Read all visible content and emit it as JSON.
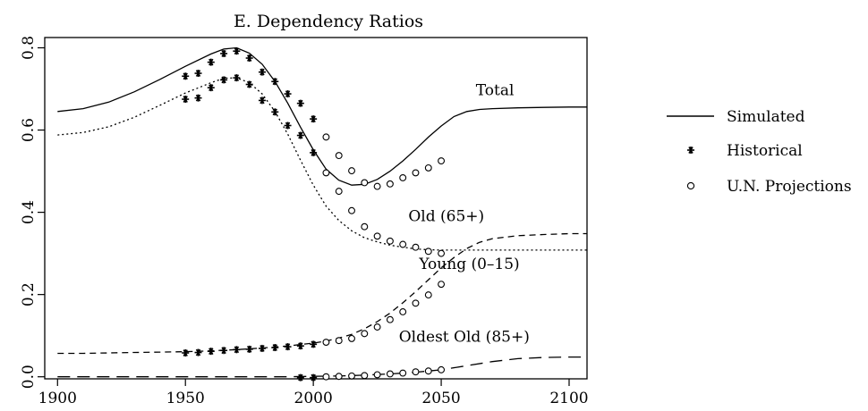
{
  "chart_data": {
    "type": "line",
    "title": "E. Dependency Ratios",
    "xlabel": "",
    "ylabel": "",
    "xlim": [
      1895,
      2107
    ],
    "ylim": [
      -0.005,
      0.825
    ],
    "x_ticks": [
      1900,
      1950,
      2000,
      2050,
      2100
    ],
    "y_ticks": [
      0.0,
      0.2,
      0.4,
      0.6,
      0.8
    ],
    "x_tick_labels": [
      "1900",
      "1950",
      "2000",
      "2050",
      "2100"
    ],
    "y_tick_labels": [
      "0.0",
      "0.2",
      "0.4",
      "0.6",
      "0.8"
    ],
    "grid": false,
    "legend": {
      "position": "right",
      "entries": [
        {
          "label": "Simulated",
          "symbol": "line"
        },
        {
          "label": "Historical",
          "symbol": "asterisk"
        },
        {
          "label": "U.N. Projections",
          "symbol": "circle"
        }
      ]
    },
    "series": [
      {
        "label": "Total",
        "line_style": "solid",
        "x": [
          1900,
          1910,
          1920,
          1930,
          1940,
          1950,
          1960,
          1965,
          1970,
          1975,
          1980,
          1985,
          1990,
          1995,
          2000,
          2005,
          2010,
          2015,
          2020,
          2025,
          2030,
          2035,
          2040,
          2045,
          2050,
          2055,
          2060,
          2065,
          2070,
          2080,
          2090,
          2100,
          2107
        ],
        "y": [
          0.645,
          0.652,
          0.668,
          0.693,
          0.723,
          0.755,
          0.785,
          0.797,
          0.8,
          0.787,
          0.76,
          0.718,
          0.665,
          0.607,
          0.552,
          0.505,
          0.478,
          0.466,
          0.468,
          0.48,
          0.5,
          0.525,
          0.553,
          0.583,
          0.61,
          0.633,
          0.645,
          0.65,
          0.652,
          0.654,
          0.655,
          0.656,
          0.656
        ]
      },
      {
        "label": "Young (0-15)",
        "line_style": "dotted",
        "x": [
          1900,
          1910,
          1920,
          1930,
          1940,
          1950,
          1960,
          1965,
          1970,
          1975,
          1980,
          1985,
          1990,
          1995,
          2000,
          2005,
          2010,
          2015,
          2020,
          2025,
          2030,
          2035,
          2040,
          2045,
          2050,
          2060,
          2070,
          2080,
          2090,
          2100,
          2107
        ],
        "y": [
          0.588,
          0.594,
          0.608,
          0.631,
          0.66,
          0.69,
          0.715,
          0.726,
          0.727,
          0.715,
          0.688,
          0.645,
          0.59,
          0.527,
          0.466,
          0.415,
          0.38,
          0.355,
          0.338,
          0.328,
          0.32,
          0.315,
          0.311,
          0.309,
          0.308,
          0.308,
          0.308,
          0.308,
          0.308,
          0.308,
          0.308
        ]
      },
      {
        "label": "Old (65+)",
        "line_style": "dashed",
        "x": [
          1900,
          1910,
          1920,
          1930,
          1940,
          1950,
          1960,
          1970,
          1980,
          1990,
          2000,
          2005,
          2010,
          2015,
          2020,
          2025,
          2030,
          2035,
          2040,
          2045,
          2050,
          2055,
          2060,
          2065,
          2070,
          2080,
          2090,
          2100,
          2107
        ],
        "y": [
          0.057,
          0.057,
          0.058,
          0.059,
          0.06,
          0.061,
          0.063,
          0.066,
          0.07,
          0.075,
          0.082,
          0.087,
          0.094,
          0.103,
          0.117,
          0.134,
          0.155,
          0.18,
          0.207,
          0.236,
          0.265,
          0.29,
          0.312,
          0.327,
          0.336,
          0.343,
          0.346,
          0.348,
          0.348
        ]
      },
      {
        "label": "Oldest Old (85+)",
        "line_style": "longdash",
        "x": [
          1900,
          1950,
          1990,
          2000,
          2010,
          2020,
          2030,
          2040,
          2050,
          2060,
          2070,
          2080,
          2090,
          2100,
          2107
        ],
        "y": [
          0.0,
          0.0,
          0.0,
          0.001,
          0.002,
          0.004,
          0.007,
          0.011,
          0.017,
          0.027,
          0.037,
          0.044,
          0.047,
          0.048,
          0.048
        ]
      }
    ],
    "historical": {
      "marker": "asterisk",
      "total": {
        "x": [
          1950,
          1955,
          1960,
          1965,
          1970,
          1975,
          1980,
          1985,
          1990,
          1995,
          2000
        ],
        "y": [
          0.731,
          0.738,
          0.765,
          0.786,
          0.792,
          0.775,
          0.741,
          0.718,
          0.688,
          0.665,
          0.627
        ]
      },
      "young": {
        "x": [
          1950,
          1955,
          1960,
          1965,
          1970,
          1975,
          1980,
          1985,
          1990,
          1995,
          2000
        ],
        "y": [
          0.675,
          0.678,
          0.703,
          0.722,
          0.727,
          0.711,
          0.672,
          0.644,
          0.611,
          0.587,
          0.545
        ]
      },
      "old": {
        "x": [
          1950,
          1955,
          1960,
          1965,
          1970,
          1975,
          1980,
          1985,
          1990,
          1995,
          2000
        ],
        "y": [
          0.058,
          0.059,
          0.062,
          0.064,
          0.066,
          0.067,
          0.069,
          0.071,
          0.073,
          0.075,
          0.079
        ]
      },
      "oldest": {
        "x": [
          1995,
          2000
        ],
        "y": [
          -0.002,
          -0.002
        ]
      }
    },
    "un_projections": {
      "marker": "circle",
      "total": {
        "x": [
          2005,
          2010,
          2015,
          2020,
          2025,
          2030,
          2035,
          2040,
          2045,
          2050
        ],
        "y": [
          0.583,
          0.538,
          0.501,
          0.472,
          0.463,
          0.469,
          0.484,
          0.496,
          0.508,
          0.525
        ]
      },
      "young": {
        "x": [
          2005,
          2010,
          2015,
          2020,
          2025,
          2030,
          2035,
          2040,
          2045,
          2050
        ],
        "y": [
          0.496,
          0.451,
          0.404,
          0.365,
          0.342,
          0.33,
          0.322,
          0.315,
          0.305,
          0.3
        ]
      },
      "old": {
        "x": [
          2005,
          2010,
          2015,
          2020,
          2025,
          2030,
          2035,
          2040,
          2045,
          2050
        ],
        "y": [
          0.084,
          0.088,
          0.093,
          0.105,
          0.121,
          0.139,
          0.158,
          0.179,
          0.199,
          0.225
        ]
      },
      "oldest": {
        "x": [
          2005,
          2010,
          2015,
          2020,
          2025,
          2030,
          2035,
          2040,
          2045,
          2050
        ],
        "y": [
          0.0,
          0.001,
          0.002,
          0.003,
          0.005,
          0.007,
          0.009,
          0.012,
          0.014,
          0.017
        ]
      }
    },
    "annotations": [
      {
        "text": "Total",
        "x": 2071,
        "y": 0.685
      },
      {
        "text": "Old (65+)",
        "x": 2052,
        "y": 0.378
      },
      {
        "text": "Young (0–15)",
        "x": 2061,
        "y": 0.262
      },
      {
        "text": "Oldest Old (85+)",
        "x": 2059,
        "y": 0.085
      }
    ]
  }
}
